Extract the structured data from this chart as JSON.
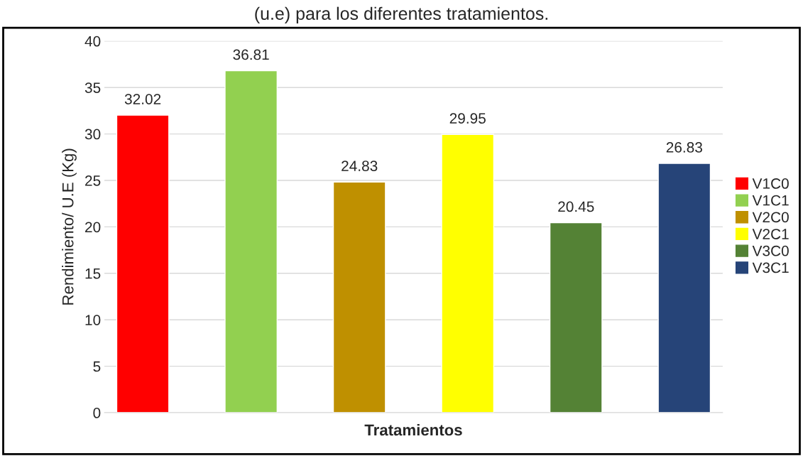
{
  "chart_data": {
    "type": "bar",
    "title": "(u.e) para los diferentes tratamientos.",
    "xlabel": "Tratamientos",
    "ylabel": "Rendimiento/ U.E (Kg)",
    "categories": [
      null
    ],
    "series": [
      {
        "name": "V1C0",
        "color": "#ff0000",
        "values": [
          32.02
        ]
      },
      {
        "name": "V1C1",
        "color": "#92d050",
        "values": [
          36.81
        ]
      },
      {
        "name": "V2C0",
        "color": "#bf9000",
        "values": [
          24.83
        ]
      },
      {
        "name": "V2C1",
        "color": "#ffff00",
        "values": [
          29.95
        ]
      },
      {
        "name": "V3C0",
        "color": "#548235",
        "values": [
          20.45
        ]
      },
      {
        "name": "V3C1",
        "color": "#264478",
        "values": [
          26.83
        ]
      }
    ],
    "ylim": [
      0,
      40
    ],
    "yticks": [
      0,
      5,
      10,
      15,
      20,
      25,
      30,
      35,
      40
    ],
    "grid": "y",
    "legend": "right",
    "data_labels": true
  }
}
